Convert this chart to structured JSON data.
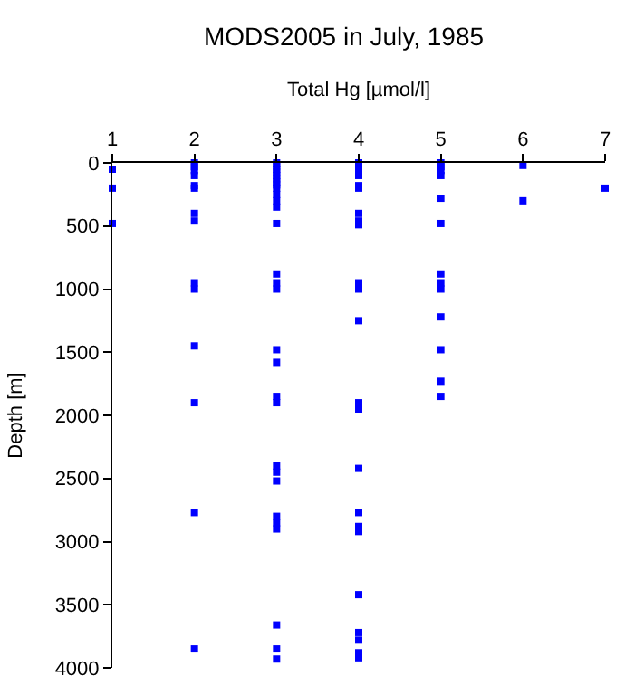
{
  "chart_data": {
    "type": "scatter",
    "title": "MODS2005 in July, 1985",
    "xlabel": "Total Hg [µmol/l]",
    "ylabel": "Depth [m]",
    "x": [
      1,
      1,
      1,
      2,
      2,
      2,
      2,
      2,
      2,
      2,
      2,
      2,
      2,
      2,
      2,
      2,
      2,
      3,
      3,
      3,
      3,
      3,
      3,
      3,
      3,
      3,
      3,
      3,
      3,
      3,
      3,
      3,
      3,
      3,
      3,
      3,
      3,
      3,
      3,
      3,
      3,
      3,
      3,
      3,
      3,
      3,
      4,
      4,
      4,
      4,
      4,
      4,
      4,
      4,
      4,
      4,
      4,
      4,
      4,
      4,
      4,
      4,
      4,
      4,
      4,
      4,
      4,
      4,
      4,
      5,
      5,
      5,
      5,
      5,
      5,
      5,
      5,
      5,
      5,
      5,
      5,
      5,
      6,
      6,
      7
    ],
    "series": [
      {
        "color": "#0000ff",
        "values": [
          50,
          200,
          480,
          0,
          30,
          60,
          100,
          180,
          200,
          400,
          460,
          950,
          1000,
          1450,
          1900,
          2770,
          3850,
          0,
          25,
          50,
          75,
          100,
          125,
          150,
          175,
          200,
          250,
          300,
          350,
          480,
          880,
          950,
          1000,
          1480,
          1580,
          1850,
          1900,
          2400,
          2450,
          2520,
          2800,
          2850,
          2900,
          3660,
          3850,
          3930,
          0,
          30,
          60,
          100,
          180,
          200,
          400,
          460,
          490,
          950,
          1000,
          1250,
          1900,
          1950,
          2420,
          2770,
          2880,
          2920,
          3420,
          3720,
          3780,
          3880,
          3920,
          0,
          30,
          60,
          100,
          280,
          480,
          880,
          950,
          1000,
          1220,
          1480,
          1730,
          1850,
          20,
          300,
          200
        ]
      }
    ],
    "xlim": [
      1,
      7
    ],
    "xticks": [
      1,
      2,
      3,
      4,
      5,
      6,
      7
    ],
    "ylim": [
      4000,
      0
    ],
    "yticks": [
      0,
      500,
      1000,
      1500,
      2000,
      2500,
      3000,
      3500,
      4000
    ],
    "marker": "square"
  }
}
